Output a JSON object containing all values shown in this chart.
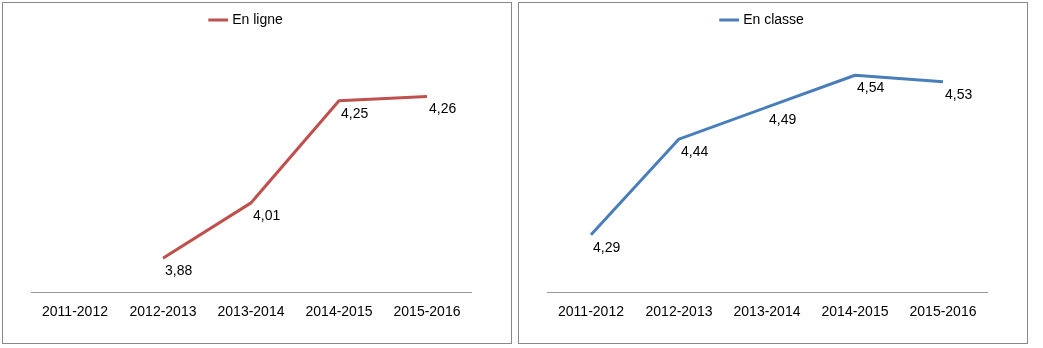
{
  "chart_data": [
    {
      "type": "line",
      "categories": [
        "2011-2012",
        "2012-2013",
        "2013-2014",
        "2014-2015",
        "2015-2016"
      ],
      "tick_labels": "x",
      "grid": false,
      "legend": "top",
      "marker": "none",
      "series": [
        {
          "name": "En ligne",
          "color": "#c0504d",
          "values": [
            null,
            3.88,
            4.01,
            4.25,
            4.26
          ],
          "value_labels": [
            null,
            "3,88",
            "4,01",
            "4,25",
            "4,26"
          ]
        }
      ]
    },
    {
      "type": "line",
      "categories": [
        "2011-2012",
        "2012-2013",
        "2013-2014",
        "2014-2015",
        "2015-2016"
      ],
      "tick_labels": "x",
      "grid": false,
      "legend": "top",
      "marker": "none",
      "series": [
        {
          "name": "En classe",
          "color": "#4a7ebb",
          "values": [
            4.29,
            4.44,
            4.49,
            4.54,
            4.53
          ],
          "value_labels": [
            "4,29",
            "4,44",
            "4,49",
            "4,54",
            "4,53"
          ]
        }
      ]
    }
  ]
}
